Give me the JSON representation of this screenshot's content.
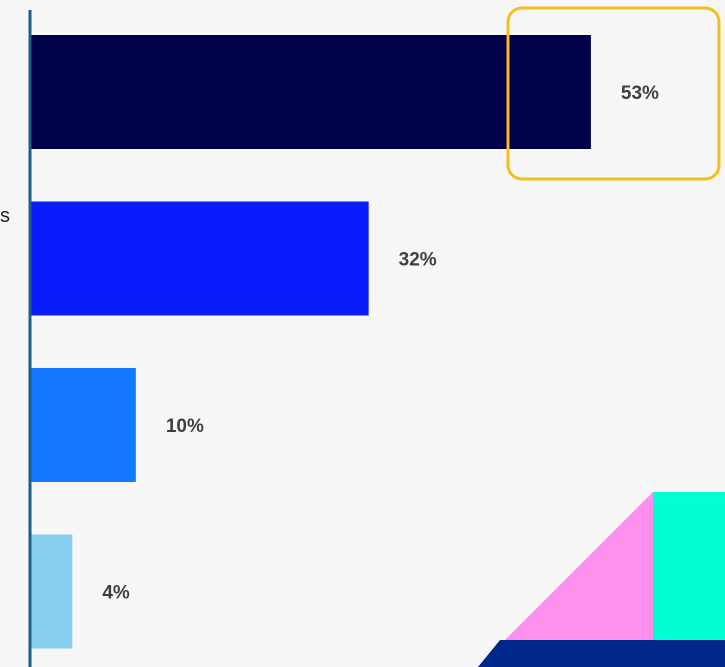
{
  "chart_data": {
    "type": "bar",
    "orientation": "horizontal",
    "categories": [
      "",
      "",
      "",
      ""
    ],
    "values": [
      53,
      32,
      10,
      4
    ],
    "value_labels": [
      "53%",
      "32%",
      "10%",
      "4%"
    ],
    "bar_colors": [
      "#00004a",
      "#0a1cfc",
      "#1477ff",
      "#86ceeb"
    ],
    "xlim": [
      0,
      60
    ],
    "highlighted_index": 0,
    "highlight_color": "#f5bd1e",
    "axis_color": "#1f5d8a",
    "grid": false,
    "title": "",
    "xlabel": "",
    "ylabel": ""
  },
  "cropped_left_label": "s",
  "decoration": {
    "colors": [
      "#ff8fec",
      "#00ffd2",
      "#00288c"
    ]
  }
}
